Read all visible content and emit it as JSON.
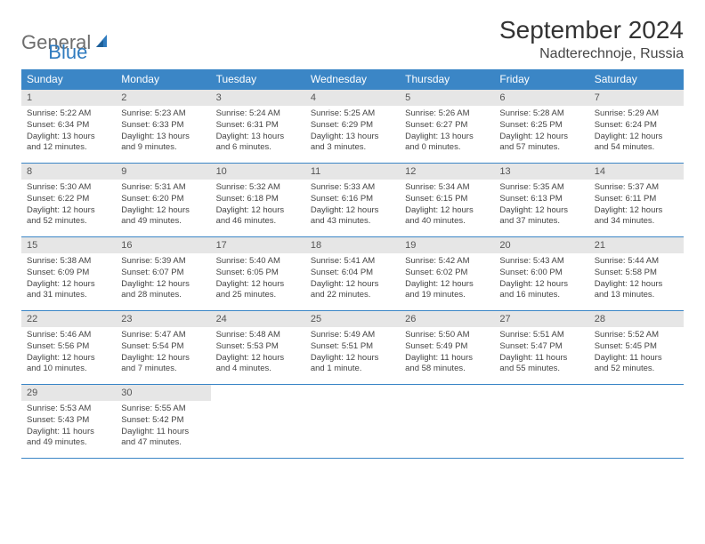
{
  "brand": {
    "part1": "General",
    "part2": "Blue"
  },
  "title": "September 2024",
  "location": "Nadterechnoje, Russia",
  "colors": {
    "header_bg": "#3b86c6",
    "header_text": "#ffffff",
    "daynum_bg": "#e6e6e6",
    "daynum_text": "#555555",
    "body_text": "#444444",
    "title_text": "#333333",
    "rule": "#3b86c6",
    "logo_gray": "#6e6e6e",
    "logo_blue": "#2f7bbf"
  },
  "weekdays": [
    "Sunday",
    "Monday",
    "Tuesday",
    "Wednesday",
    "Thursday",
    "Friday",
    "Saturday"
  ],
  "weeks": [
    [
      {
        "n": "1",
        "sr": "Sunrise: 5:22 AM",
        "ss": "Sunset: 6:34 PM",
        "dl1": "Daylight: 13 hours",
        "dl2": "and 12 minutes."
      },
      {
        "n": "2",
        "sr": "Sunrise: 5:23 AM",
        "ss": "Sunset: 6:33 PM",
        "dl1": "Daylight: 13 hours",
        "dl2": "and 9 minutes."
      },
      {
        "n": "3",
        "sr": "Sunrise: 5:24 AM",
        "ss": "Sunset: 6:31 PM",
        "dl1": "Daylight: 13 hours",
        "dl2": "and 6 minutes."
      },
      {
        "n": "4",
        "sr": "Sunrise: 5:25 AM",
        "ss": "Sunset: 6:29 PM",
        "dl1": "Daylight: 13 hours",
        "dl2": "and 3 minutes."
      },
      {
        "n": "5",
        "sr": "Sunrise: 5:26 AM",
        "ss": "Sunset: 6:27 PM",
        "dl1": "Daylight: 13 hours",
        "dl2": "and 0 minutes."
      },
      {
        "n": "6",
        "sr": "Sunrise: 5:28 AM",
        "ss": "Sunset: 6:25 PM",
        "dl1": "Daylight: 12 hours",
        "dl2": "and 57 minutes."
      },
      {
        "n": "7",
        "sr": "Sunrise: 5:29 AM",
        "ss": "Sunset: 6:24 PM",
        "dl1": "Daylight: 12 hours",
        "dl2": "and 54 minutes."
      }
    ],
    [
      {
        "n": "8",
        "sr": "Sunrise: 5:30 AM",
        "ss": "Sunset: 6:22 PM",
        "dl1": "Daylight: 12 hours",
        "dl2": "and 52 minutes."
      },
      {
        "n": "9",
        "sr": "Sunrise: 5:31 AM",
        "ss": "Sunset: 6:20 PM",
        "dl1": "Daylight: 12 hours",
        "dl2": "and 49 minutes."
      },
      {
        "n": "10",
        "sr": "Sunrise: 5:32 AM",
        "ss": "Sunset: 6:18 PM",
        "dl1": "Daylight: 12 hours",
        "dl2": "and 46 minutes."
      },
      {
        "n": "11",
        "sr": "Sunrise: 5:33 AM",
        "ss": "Sunset: 6:16 PM",
        "dl1": "Daylight: 12 hours",
        "dl2": "and 43 minutes."
      },
      {
        "n": "12",
        "sr": "Sunrise: 5:34 AM",
        "ss": "Sunset: 6:15 PM",
        "dl1": "Daylight: 12 hours",
        "dl2": "and 40 minutes."
      },
      {
        "n": "13",
        "sr": "Sunrise: 5:35 AM",
        "ss": "Sunset: 6:13 PM",
        "dl1": "Daylight: 12 hours",
        "dl2": "and 37 minutes."
      },
      {
        "n": "14",
        "sr": "Sunrise: 5:37 AM",
        "ss": "Sunset: 6:11 PM",
        "dl1": "Daylight: 12 hours",
        "dl2": "and 34 minutes."
      }
    ],
    [
      {
        "n": "15",
        "sr": "Sunrise: 5:38 AM",
        "ss": "Sunset: 6:09 PM",
        "dl1": "Daylight: 12 hours",
        "dl2": "and 31 minutes."
      },
      {
        "n": "16",
        "sr": "Sunrise: 5:39 AM",
        "ss": "Sunset: 6:07 PM",
        "dl1": "Daylight: 12 hours",
        "dl2": "and 28 minutes."
      },
      {
        "n": "17",
        "sr": "Sunrise: 5:40 AM",
        "ss": "Sunset: 6:05 PM",
        "dl1": "Daylight: 12 hours",
        "dl2": "and 25 minutes."
      },
      {
        "n": "18",
        "sr": "Sunrise: 5:41 AM",
        "ss": "Sunset: 6:04 PM",
        "dl1": "Daylight: 12 hours",
        "dl2": "and 22 minutes."
      },
      {
        "n": "19",
        "sr": "Sunrise: 5:42 AM",
        "ss": "Sunset: 6:02 PM",
        "dl1": "Daylight: 12 hours",
        "dl2": "and 19 minutes."
      },
      {
        "n": "20",
        "sr": "Sunrise: 5:43 AM",
        "ss": "Sunset: 6:00 PM",
        "dl1": "Daylight: 12 hours",
        "dl2": "and 16 minutes."
      },
      {
        "n": "21",
        "sr": "Sunrise: 5:44 AM",
        "ss": "Sunset: 5:58 PM",
        "dl1": "Daylight: 12 hours",
        "dl2": "and 13 minutes."
      }
    ],
    [
      {
        "n": "22",
        "sr": "Sunrise: 5:46 AM",
        "ss": "Sunset: 5:56 PM",
        "dl1": "Daylight: 12 hours",
        "dl2": "and 10 minutes."
      },
      {
        "n": "23",
        "sr": "Sunrise: 5:47 AM",
        "ss": "Sunset: 5:54 PM",
        "dl1": "Daylight: 12 hours",
        "dl2": "and 7 minutes."
      },
      {
        "n": "24",
        "sr": "Sunrise: 5:48 AM",
        "ss": "Sunset: 5:53 PM",
        "dl1": "Daylight: 12 hours",
        "dl2": "and 4 minutes."
      },
      {
        "n": "25",
        "sr": "Sunrise: 5:49 AM",
        "ss": "Sunset: 5:51 PM",
        "dl1": "Daylight: 12 hours",
        "dl2": "and 1 minute."
      },
      {
        "n": "26",
        "sr": "Sunrise: 5:50 AM",
        "ss": "Sunset: 5:49 PM",
        "dl1": "Daylight: 11 hours",
        "dl2": "and 58 minutes."
      },
      {
        "n": "27",
        "sr": "Sunrise: 5:51 AM",
        "ss": "Sunset: 5:47 PM",
        "dl1": "Daylight: 11 hours",
        "dl2": "and 55 minutes."
      },
      {
        "n": "28",
        "sr": "Sunrise: 5:52 AM",
        "ss": "Sunset: 5:45 PM",
        "dl1": "Daylight: 11 hours",
        "dl2": "and 52 minutes."
      }
    ],
    [
      {
        "n": "29",
        "sr": "Sunrise: 5:53 AM",
        "ss": "Sunset: 5:43 PM",
        "dl1": "Daylight: 11 hours",
        "dl2": "and 49 minutes."
      },
      {
        "n": "30",
        "sr": "Sunrise: 5:55 AM",
        "ss": "Sunset: 5:42 PM",
        "dl1": "Daylight: 11 hours",
        "dl2": "and 47 minutes."
      },
      null,
      null,
      null,
      null,
      null
    ]
  ]
}
